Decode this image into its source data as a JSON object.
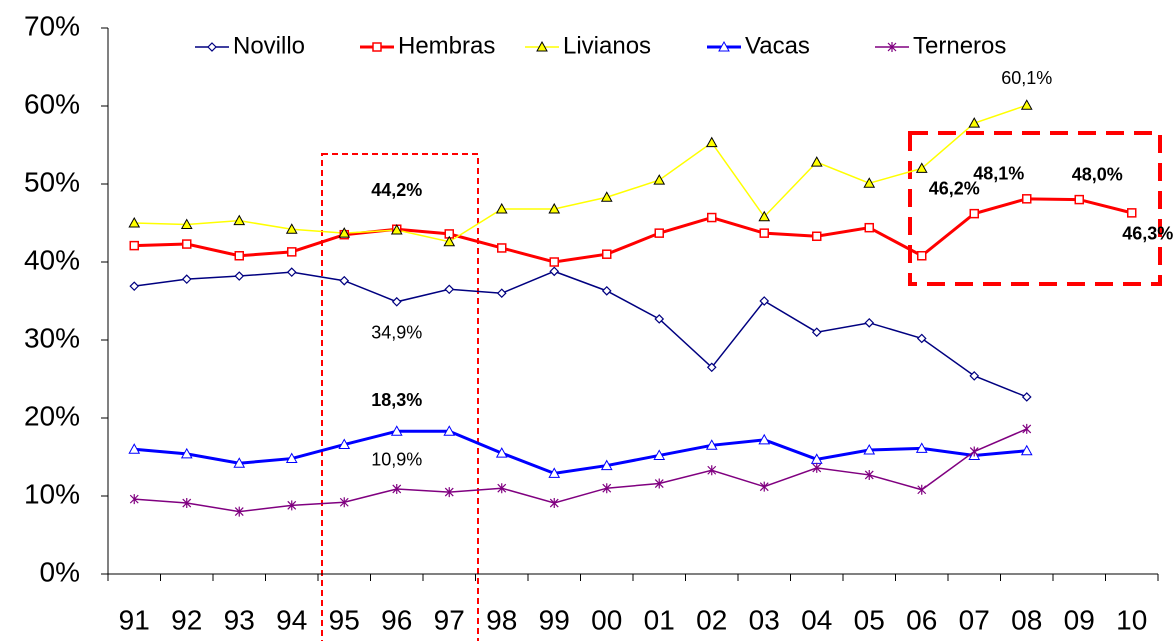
{
  "chart_data": {
    "type": "line",
    "categories": [
      "91",
      "92",
      "93",
      "94",
      "95",
      "96",
      "97",
      "98",
      "99",
      "00",
      "01",
      "02",
      "03",
      "04",
      "05",
      "06",
      "07",
      "08",
      "09",
      "10"
    ],
    "ylim": [
      0,
      70
    ],
    "yticks": [
      {
        "value": 0,
        "label": "0%"
      },
      {
        "value": 10,
        "label": "10%"
      },
      {
        "value": 20,
        "label": "20%"
      },
      {
        "value": 30,
        "label": "30%"
      },
      {
        "value": 40,
        "label": "40%"
      },
      {
        "value": 50,
        "label": "50%"
      },
      {
        "value": 60,
        "label": "60%"
      },
      {
        "value": 70,
        "label": "70%"
      }
    ],
    "legend": "top",
    "series": [
      {
        "name": "Novillo",
        "color": "#000080",
        "marker": "diamond",
        "line_width": 1.5,
        "values": [
          36.9,
          37.8,
          38.2,
          38.7,
          37.6,
          34.9,
          36.5,
          36.0,
          38.8,
          36.3,
          32.7,
          26.5,
          35.0,
          31.0,
          32.2,
          30.2,
          25.4,
          22.7,
          null,
          null
        ],
        "value_labels": [
          null,
          null,
          null,
          null,
          null,
          "34,9%",
          null,
          null,
          null,
          null,
          null,
          null,
          null,
          null,
          null,
          null,
          null,
          null,
          null,
          null
        ]
      },
      {
        "name": "Hembras",
        "color": "#ff0000",
        "marker": "square",
        "line_width": 3,
        "values": [
          42.1,
          42.3,
          40.8,
          41.3,
          43.5,
          44.2,
          43.6,
          41.8,
          40.0,
          41.0,
          43.7,
          45.7,
          43.7,
          43.3,
          44.4,
          40.8,
          46.2,
          48.1,
          48.0,
          46.3
        ],
        "value_labels": [
          null,
          null,
          null,
          null,
          null,
          "44,2%",
          null,
          null,
          null,
          null,
          null,
          null,
          null,
          null,
          null,
          null,
          "46,2%",
          "48,1%",
          "48,0%",
          "46,3%"
        ]
      },
      {
        "name": "Livianos",
        "color": "#ffff00",
        "marker": "triangle",
        "line_width": 1.5,
        "values": [
          45.0,
          44.8,
          45.3,
          44.2,
          43.7,
          44.1,
          42.6,
          46.8,
          46.8,
          48.3,
          50.5,
          55.3,
          45.8,
          52.8,
          50.1,
          52.0,
          57.8,
          60.1,
          null,
          null
        ],
        "value_labels": [
          null,
          null,
          null,
          null,
          null,
          null,
          null,
          null,
          null,
          null,
          null,
          null,
          null,
          null,
          null,
          null,
          null,
          "60,1%",
          null,
          null
        ]
      },
      {
        "name": "Vacas",
        "color": "#0000ff",
        "marker": "triangle",
        "line_width": 3,
        "values": [
          16.0,
          15.4,
          14.2,
          14.8,
          16.6,
          18.3,
          18.3,
          15.5,
          12.9,
          13.9,
          15.2,
          16.5,
          17.2,
          14.7,
          15.9,
          16.1,
          15.2,
          15.8,
          null,
          null
        ],
        "value_labels": [
          null,
          null,
          null,
          null,
          null,
          "18,3%",
          null,
          null,
          null,
          null,
          null,
          null,
          null,
          null,
          null,
          null,
          null,
          null,
          null,
          null
        ]
      },
      {
        "name": "Terneros",
        "color": "#800080",
        "marker": "star",
        "line_width": 1.5,
        "values": [
          9.6,
          9.1,
          8.0,
          8.8,
          9.2,
          10.9,
          10.5,
          11.0,
          9.1,
          11.0,
          11.6,
          13.3,
          11.2,
          13.6,
          12.7,
          10.8,
          15.7,
          18.6,
          null,
          null
        ],
        "value_labels": [
          null,
          null,
          null,
          null,
          null,
          "10,9%",
          null,
          null,
          null,
          null,
          null,
          null,
          null,
          null,
          null,
          null,
          null,
          null,
          null,
          null
        ]
      }
    ]
  }
}
